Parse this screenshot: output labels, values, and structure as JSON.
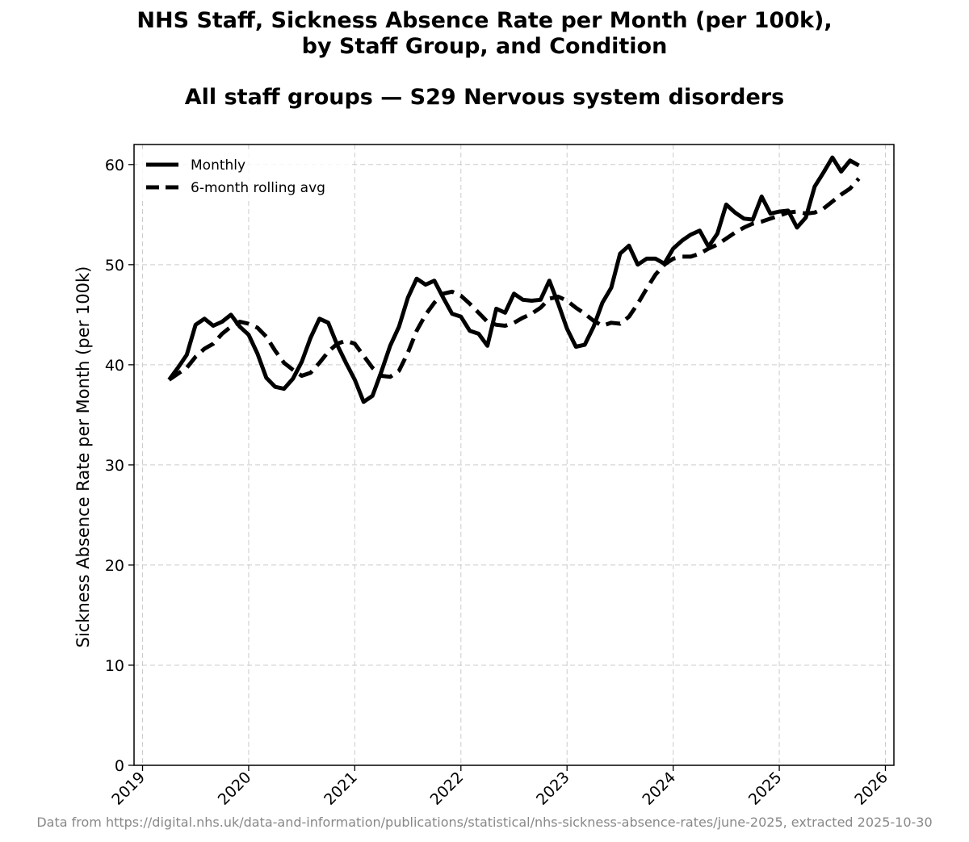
{
  "title": {
    "line1": "NHS Staff, Sickness Absence Rate per Month (per 100k),",
    "line2": "by Staff Group, and Condition",
    "subtitle": "All staff groups — S29 Nervous system disorders"
  },
  "footer": "Data from https://digital.nhs.uk/data-and-information/publications/statistical/nhs-sickness-absence-rates/june-2025, extracted 2025-10-30",
  "chart_data": {
    "type": "line",
    "title": "NHS Staff, Sickness Absence Rate per Month (per 100k), by Staff Group, and Condition — All staff groups — S29 Nervous system disorders",
    "xlabel": "",
    "ylabel": "Sickness Absence Rate per Month (per 100k)",
    "xlim": [
      2018.92,
      2026.08
    ],
    "ylim": [
      0,
      62
    ],
    "grid": true,
    "legend_position": "top-left",
    "x_ticks": [
      2019,
      2020,
      2021,
      2022,
      2023,
      2024,
      2025,
      2026
    ],
    "x_tick_labels": [
      "2019",
      "2020",
      "2021",
      "2022",
      "2023",
      "2024",
      "2025",
      "2026"
    ],
    "y_ticks": [
      0,
      10,
      20,
      30,
      40,
      50,
      60
    ],
    "y_tick_labels": [
      "0",
      "10",
      "20",
      "30",
      "40",
      "50",
      "60"
    ],
    "series": [
      {
        "name": "Monthly",
        "style": "solid",
        "color": "#000000",
        "start": "2019-04",
        "values": [
          38.5,
          39.7,
          41.0,
          44.0,
          44.6,
          43.9,
          44.3,
          45.0,
          43.8,
          43.0,
          41.1,
          38.7,
          37.8,
          37.6,
          38.6,
          40.3,
          42.7,
          44.6,
          44.2,
          42.0,
          40.2,
          38.5,
          36.3,
          36.9,
          39.3,
          41.9,
          43.8,
          46.7,
          48.6,
          48.0,
          48.4,
          46.7,
          45.1,
          44.8,
          43.4,
          43.1,
          41.9,
          45.6,
          45.2,
          47.1,
          46.5,
          46.4,
          46.5,
          48.4,
          46.1,
          43.6,
          41.8,
          42.0,
          43.8,
          46.2,
          47.7,
          51.1,
          51.9,
          50.0,
          50.6,
          50.6,
          50.1,
          51.6,
          52.4,
          53.0,
          53.4,
          51.8,
          53.1,
          56.0,
          55.2,
          54.6,
          54.5,
          56.8,
          55.1,
          55.3,
          55.4,
          53.7,
          54.7,
          57.8,
          59.2,
          60.7,
          59.3,
          60.4,
          59.9
        ]
      },
      {
        "name": "6-month rolling avg",
        "style": "dashed",
        "color": "#000000",
        "start": "2019-04",
        "values": [
          38.5,
          39.1,
          39.7,
          40.8,
          41.6,
          42.1,
          43.1,
          43.8,
          44.3,
          44.1,
          43.7,
          42.8,
          41.4,
          40.2,
          39.5,
          38.9,
          39.2,
          40.2,
          41.3,
          42.1,
          42.4,
          42.1,
          40.9,
          39.7,
          38.9,
          38.8,
          39.4,
          41.2,
          43.4,
          45.0,
          46.2,
          47.1,
          47.3,
          46.9,
          46.1,
          45.2,
          44.3,
          44.0,
          43.9,
          44.2,
          44.7,
          45.1,
          45.7,
          46.6,
          46.8,
          46.4,
          45.7,
          45.1,
          44.4,
          43.9,
          44.2,
          44.1,
          44.8,
          46.1,
          47.6,
          49.0,
          50.0,
          50.6,
          50.8,
          50.8,
          51.1,
          51.6,
          52.0,
          52.6,
          53.2,
          53.7,
          54.1,
          54.3,
          54.6,
          54.9,
          55.2,
          55.3,
          55.1,
          55.2,
          55.6,
          56.3,
          57.0,
          57.6,
          58.6
        ]
      }
    ]
  }
}
